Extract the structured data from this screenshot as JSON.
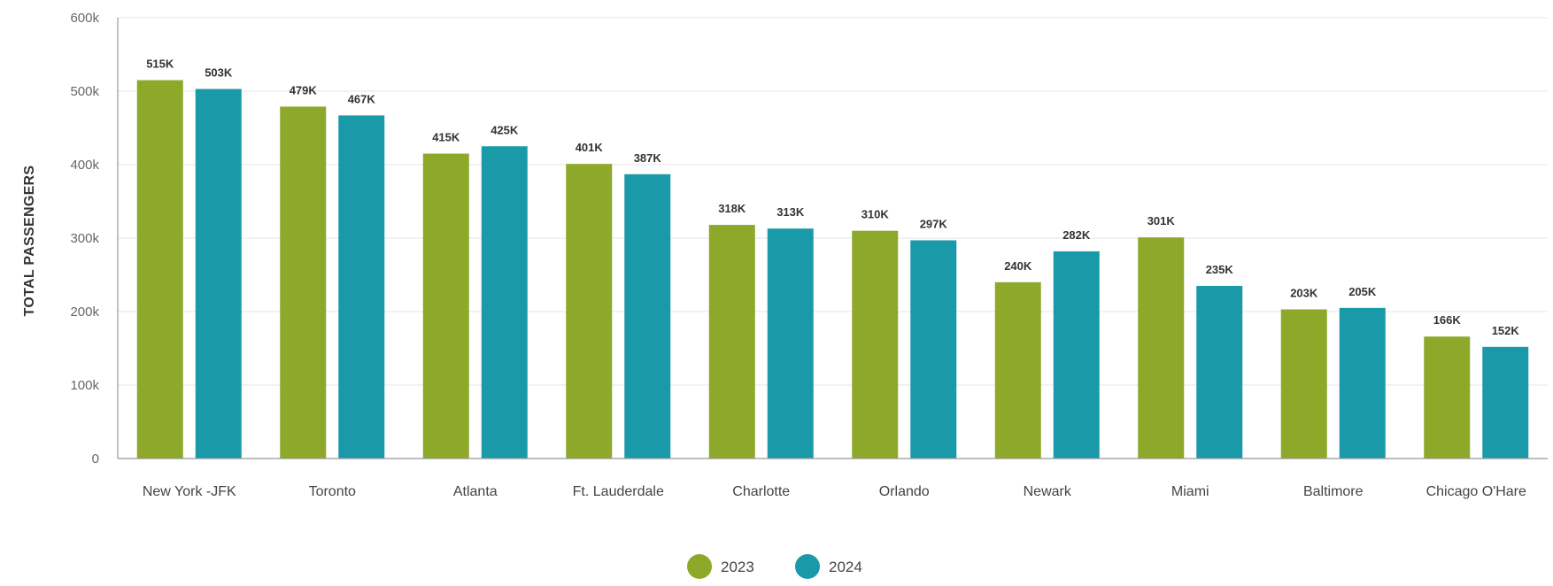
{
  "chart_data": {
    "type": "bar",
    "title": "",
    "xlabel": "",
    "ylabel": "TOTAL PASSENGERS",
    "ylim": [
      0,
      600000
    ],
    "yticks": [
      0,
      100000,
      200000,
      300000,
      400000,
      500000,
      600000
    ],
    "ytick_labels": [
      "0",
      "100k",
      "200k",
      "300k",
      "400k",
      "500k",
      "600k"
    ],
    "grid": true,
    "legend_position": "bottom-center",
    "categories": [
      "New York -JFK",
      "Toronto",
      "Atlanta",
      "Ft. Lauderdale",
      "Charlotte",
      "Orlando",
      "Newark",
      "Miami",
      "Baltimore",
      "Chicago O'Hare"
    ],
    "series": [
      {
        "name": "2023",
        "color": "#8ea82a",
        "values": [
          515000,
          479000,
          415000,
          401000,
          318000,
          310000,
          240000,
          301000,
          203000,
          166000
        ],
        "labels": [
          "515K",
          "479K",
          "415K",
          "401K",
          "318K",
          "310K",
          "240K",
          "301K",
          "203K",
          "166K"
        ]
      },
      {
        "name": "2024",
        "color": "#1a9aa8",
        "values": [
          503000,
          467000,
          425000,
          387000,
          313000,
          297000,
          282000,
          235000,
          205000,
          152000
        ],
        "labels": [
          "503K",
          "467K",
          "425K",
          "387K",
          "313K",
          "297K",
          "282K",
          "235K",
          "205K",
          "152K"
        ]
      }
    ]
  }
}
